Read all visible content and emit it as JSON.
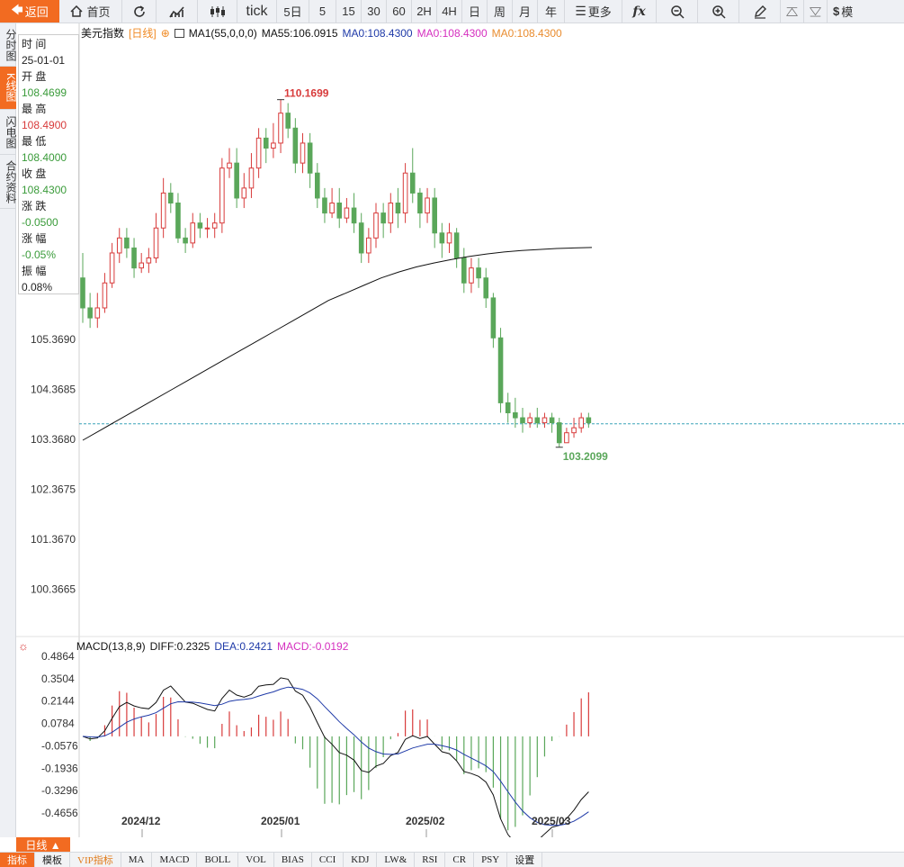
{
  "toolbar": {
    "back": "返回",
    "home": "首页",
    "tick": "tick",
    "periods": [
      "5日",
      "5",
      "15",
      "30",
      "60",
      "2H",
      "4H",
      "日",
      "周",
      "月",
      "年"
    ],
    "more": "更多",
    "model": "模"
  },
  "left_tabs": [
    "分时图",
    "K线图",
    "闪电图",
    "合约资料"
  ],
  "info": {
    "rows": [
      {
        "label": "时 间",
        "value": "25-01-01",
        "tone": ""
      },
      {
        "label": "开 盘",
        "value": "108.4699",
        "tone": "green"
      },
      {
        "label": "最 高",
        "value": "108.4900",
        "tone": "red"
      },
      {
        "label": "最 低",
        "value": "108.4000",
        "tone": "green"
      },
      {
        "label": "收 盘",
        "value": "108.4300",
        "tone": "green"
      },
      {
        "label": "涨 跌",
        "value": "-0.0500",
        "tone": "green"
      },
      {
        "label": "涨 幅",
        "value": "-0.05%",
        "tone": "green"
      },
      {
        "label": "振 幅",
        "value": "0.08%",
        "tone": ""
      }
    ]
  },
  "legend": {
    "symbol": "美元指数",
    "period": "[日线]",
    "period_icon": "⊕",
    "ma1": "MA1(55,0,0,0)",
    "ma55": "MA55:106.0915",
    "ma_a": "MA0:108.4300",
    "ma_b": "MA0:108.4300",
    "ma_c": "MA0:108.4300"
  },
  "macd_legend": {
    "name": "MACD(13,8,9)",
    "diff": "DIFF:0.2325",
    "dea": "DEA:0.2421",
    "macd": "MACD:-0.0192"
  },
  "bottom": {
    "period": "日线 ▲",
    "tabs": [
      "指标",
      "模板",
      "VIP指标",
      "MA",
      "MACD",
      "BOLL",
      "VOL",
      "BIAS",
      "CCI",
      "KDJ",
      "LW&",
      "RSI",
      "CR",
      "PSY",
      "设置"
    ]
  },
  "colors": {
    "up": "#d83b3b",
    "down": "#5aa75a",
    "accent": "#f26b21",
    "ma55": "#111111",
    "dea": "#1f3aa8"
  },
  "chart_data": {
    "type": "candlestick",
    "price_axis_ticks": [
      "105.3690",
      "104.3685",
      "103.3680",
      "102.3675",
      "101.3670",
      "100.3665"
    ],
    "macd_axis_ticks": [
      "0.4864",
      "0.3504",
      "0.2144",
      "0.0784",
      "-0.0576",
      "-0.1936",
      "-0.3296",
      "-0.4656"
    ],
    "x_tick_labels": [
      "2024/12",
      "2025/01",
      "2025/02",
      "2025/03"
    ],
    "high_marker": "110.1699",
    "low_marker": "103.2099",
    "last_price_line": 103.68,
    "candles": [
      [
        106.6,
        106.0,
        107.1,
        105.7
      ],
      [
        106.0,
        105.8,
        106.3,
        105.6
      ],
      [
        105.8,
        106.0,
        106.3,
        105.6
      ],
      [
        106.0,
        106.5,
        106.7,
        105.9
      ],
      [
        106.5,
        107.1,
        107.3,
        106.4
      ],
      [
        107.1,
        107.4,
        107.6,
        106.9
      ],
      [
        107.4,
        107.2,
        107.6,
        107.0
      ],
      [
        107.2,
        106.8,
        107.4,
        106.6
      ],
      [
        106.8,
        106.9,
        107.1,
        106.7
      ],
      [
        106.9,
        107.0,
        107.2,
        106.7
      ],
      [
        107.0,
        107.6,
        107.9,
        106.9
      ],
      [
        107.6,
        108.3,
        108.6,
        107.4
      ],
      [
        108.3,
        108.1,
        108.5,
        107.9
      ],
      [
        108.1,
        107.4,
        108.3,
        107.3
      ],
      [
        107.4,
        107.3,
        107.6,
        107.1
      ],
      [
        107.3,
        107.7,
        107.9,
        107.2
      ],
      [
        107.7,
        107.6,
        107.9,
        107.4
      ],
      [
        107.6,
        107.6,
        107.8,
        107.4
      ],
      [
        107.6,
        107.7,
        107.9,
        107.4
      ],
      [
        107.7,
        108.8,
        109.0,
        107.5
      ],
      [
        108.8,
        108.9,
        109.2,
        108.6
      ],
      [
        108.9,
        108.2,
        109.2,
        108.0
      ],
      [
        108.2,
        108.4,
        108.7,
        108.0
      ],
      [
        108.4,
        108.8,
        109.1,
        108.2
      ],
      [
        108.8,
        109.4,
        109.6,
        108.6
      ],
      [
        109.4,
        109.2,
        109.6,
        108.9
      ],
      [
        109.2,
        109.3,
        109.7,
        109.0
      ],
      [
        109.3,
        109.9,
        110.17,
        109.1
      ],
      [
        109.9,
        109.6,
        110.1,
        109.4
      ],
      [
        109.6,
        108.9,
        109.8,
        108.7
      ],
      [
        108.9,
        109.3,
        109.5,
        108.7
      ],
      [
        109.3,
        108.7,
        109.5,
        108.4
      ],
      [
        108.7,
        108.2,
        108.9,
        108.0
      ],
      [
        108.2,
        107.9,
        108.4,
        107.7
      ],
      [
        107.9,
        108.1,
        108.4,
        107.8
      ],
      [
        108.1,
        107.8,
        108.4,
        107.6
      ],
      [
        107.8,
        108.0,
        108.2,
        107.7
      ],
      [
        108.0,
        107.7,
        108.3,
        107.5
      ],
      [
        107.7,
        107.1,
        107.9,
        106.9
      ],
      [
        107.1,
        107.4,
        107.6,
        106.9
      ],
      [
        107.4,
        107.9,
        108.1,
        107.2
      ],
      [
        107.9,
        107.7,
        108.1,
        107.4
      ],
      [
        107.7,
        108.1,
        108.3,
        107.5
      ],
      [
        108.1,
        107.9,
        108.4,
        107.6
      ],
      [
        107.9,
        108.7,
        108.9,
        107.7
      ],
      [
        108.7,
        108.3,
        109.2,
        108.1
      ],
      [
        108.3,
        107.9,
        108.4,
        107.6
      ],
      [
        107.9,
        108.2,
        108.4,
        107.7
      ],
      [
        108.2,
        107.5,
        108.4,
        107.2
      ],
      [
        107.5,
        107.3,
        107.7,
        107.0
      ],
      [
        107.3,
        107.5,
        107.7,
        107.1
      ],
      [
        107.5,
        107.0,
        107.6,
        106.8
      ],
      [
        107.0,
        106.5,
        107.2,
        106.3
      ],
      [
        106.5,
        106.8,
        107.0,
        106.3
      ],
      [
        106.8,
        106.6,
        107.0,
        106.4
      ],
      [
        106.6,
        106.2,
        106.8,
        106.0
      ],
      [
        106.2,
        105.4,
        106.3,
        105.2
      ],
      [
        105.4,
        104.1,
        105.6,
        103.9
      ],
      [
        104.1,
        103.9,
        104.3,
        103.7
      ],
      [
        103.9,
        103.8,
        104.2,
        103.6
      ],
      [
        103.8,
        103.7,
        104.0,
        103.5
      ],
      [
        103.7,
        103.8,
        103.9,
        103.6
      ],
      [
        103.8,
        103.7,
        104.0,
        103.6
      ],
      [
        103.7,
        103.8,
        103.9,
        103.6
      ],
      [
        103.8,
        103.7,
        103.9,
        103.5
      ],
      [
        103.7,
        103.3,
        103.8,
        103.21
      ],
      [
        103.3,
        103.5,
        103.6,
        103.3
      ],
      [
        103.5,
        103.6,
        103.8,
        103.4
      ],
      [
        103.6,
        103.8,
        103.9,
        103.5
      ],
      [
        103.8,
        103.7,
        103.9,
        103.6
      ]
    ],
    "ma55": [
      103.35,
      103.55,
      103.75,
      103.95,
      104.15,
      104.35,
      104.55,
      104.75,
      104.95,
      105.15,
      105.35,
      105.55,
      105.75,
      105.95,
      106.15,
      106.3,
      106.45,
      106.6,
      106.72,
      106.82,
      106.9,
      106.97,
      107.03,
      107.08,
      107.12,
      107.15,
      107.17,
      107.19,
      107.2,
      107.21
    ]
  }
}
